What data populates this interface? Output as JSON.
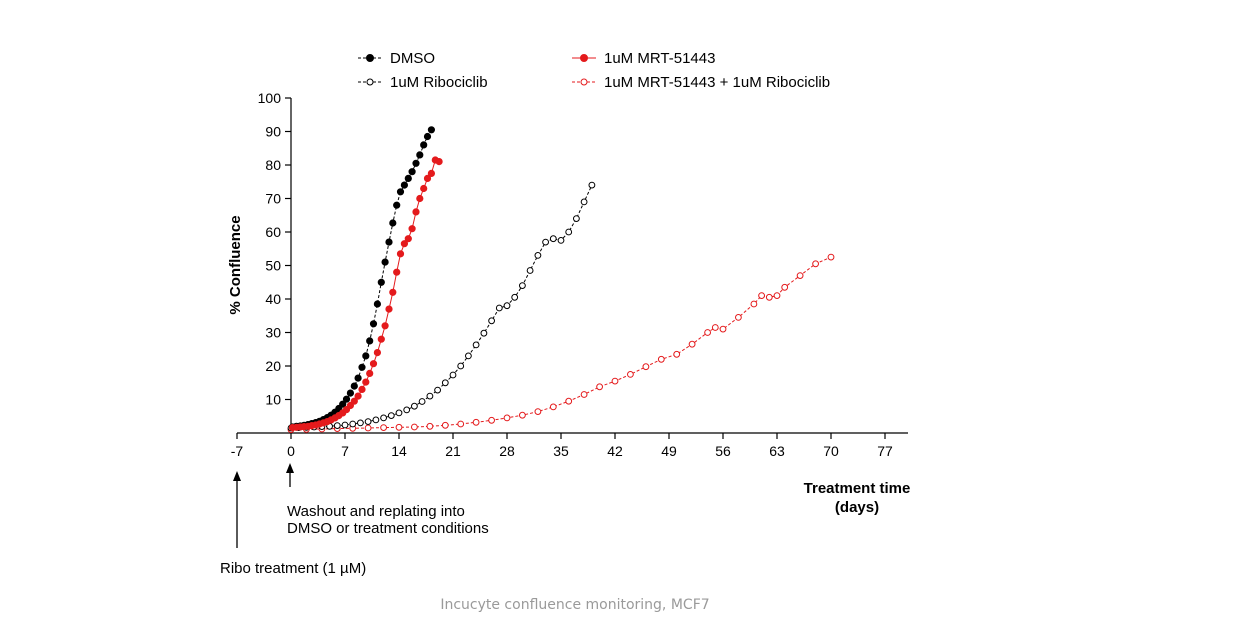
{
  "chart_data": {
    "type": "scatter",
    "title": "",
    "xlabel": [
      "Treatment time",
      "(days)"
    ],
    "ylabel": "% Confluence",
    "xlim": [
      -7,
      80
    ],
    "ylim": [
      0,
      100
    ],
    "x_ticks": [
      -7,
      0,
      7,
      14,
      21,
      28,
      35,
      42,
      49,
      56,
      63,
      70,
      77
    ],
    "y_ticks": [
      10,
      20,
      30,
      40,
      50,
      60,
      70,
      80,
      90,
      100
    ],
    "legend_position": "top",
    "series": [
      {
        "name": "DMSO",
        "color": "#000000",
        "marker": "filled",
        "line": "dashed",
        "x": [
          0.2,
          0.7,
          1.2,
          1.7,
          2.2,
          2.7,
          3.2,
          3.7,
          4.2,
          4.7,
          5.2,
          5.7,
          6.2,
          6.7,
          7.2,
          7.7,
          8.2,
          8.7,
          9.2,
          9.7,
          10.2,
          10.7,
          11.2,
          11.7,
          12.2,
          12.7,
          13.2,
          13.7,
          14.2,
          14.7,
          15.2,
          15.7,
          16.2,
          16.7,
          17.2,
          17.7,
          18.2
        ],
        "y": [
          1.8,
          2.0,
          2.1,
          2.3,
          2.5,
          2.8,
          3.1,
          3.5,
          4.0,
          4.6,
          5.3,
          6.2,
          7.3,
          8.6,
          10.1,
          11.9,
          14.0,
          16.4,
          19.6,
          23.0,
          27.5,
          32.6,
          38.5,
          45.0,
          51.0,
          57.0,
          62.7,
          68.0,
          72.0,
          74.0,
          76.0,
          78.0,
          80.5,
          83.0,
          86.0,
          88.5,
          90.5
        ]
      },
      {
        "name": "1uM MRT-51443",
        "color": "#e41a1c",
        "marker": "filled",
        "line": "solid",
        "x": [
          0.2,
          0.7,
          1.2,
          1.7,
          2.2,
          2.7,
          3.2,
          3.7,
          4.2,
          4.7,
          5.2,
          5.7,
          6.2,
          6.7,
          7.2,
          7.7,
          8.2,
          8.7,
          9.2,
          9.7,
          10.2,
          10.7,
          11.2,
          11.7,
          12.2,
          12.7,
          13.2,
          13.7,
          14.2,
          14.7,
          15.2,
          15.7,
          16.2,
          16.7,
          17.2,
          17.7,
          18.2,
          18.7,
          19.2
        ],
        "y": [
          1.6,
          1.7,
          1.8,
          1.9,
          2.0,
          2.2,
          2.4,
          2.7,
          3.0,
          3.4,
          3.9,
          4.5,
          5.2,
          6.0,
          7.0,
          8.2,
          9.5,
          11.0,
          13.0,
          15.2,
          17.8,
          20.7,
          24.0,
          28.0,
          32.0,
          37.0,
          42.0,
          48.0,
          53.5,
          56.5,
          58.0,
          61.0,
          66.0,
          70.0,
          73.0,
          76.0,
          77.5,
          81.5,
          81.0
        ]
      },
      {
        "name": "1uM Ribociclib",
        "color": "#000000",
        "marker": "open",
        "line": "dashed",
        "x": [
          0,
          1,
          2,
          3,
          4,
          5,
          6,
          7,
          8,
          9,
          10,
          11,
          12,
          13,
          14,
          15,
          16,
          17,
          18,
          19,
          20,
          21,
          22,
          23,
          24,
          25,
          26,
          27,
          28,
          29,
          30,
          31,
          32,
          33,
          34,
          35,
          36,
          37,
          38,
          39
        ],
        "y": [
          1.5,
          1.6,
          1.7,
          1.8,
          1.9,
          2.0,
          2.2,
          2.4,
          2.7,
          3.0,
          3.4,
          3.9,
          4.5,
          5.2,
          6.0,
          6.9,
          8.0,
          9.4,
          11.0,
          12.8,
          15.0,
          17.3,
          20.0,
          23.0,
          26.3,
          29.8,
          33.5,
          37.3,
          38.0,
          40.5,
          44.0,
          48.5,
          53.0,
          57.0,
          58.0,
          57.5,
          60.0,
          64.0,
          69.0,
          74.0
        ]
      },
      {
        "name": "1uM MRT-51443 + 1uM Ribociclib",
        "color": "#e41a1c",
        "marker": "open",
        "line": "dashed",
        "x": [
          0,
          2,
          4,
          6,
          8,
          10,
          12,
          14,
          16,
          18,
          20,
          22,
          24,
          26,
          28,
          30,
          32,
          34,
          36,
          38,
          40,
          42,
          44,
          46,
          48,
          50,
          52,
          54,
          55,
          56,
          58,
          60,
          61,
          62,
          63,
          64,
          66,
          68,
          70
        ],
        "y": [
          1.0,
          1.1,
          1.2,
          1.3,
          1.4,
          1.5,
          1.6,
          1.7,
          1.8,
          2.0,
          2.3,
          2.7,
          3.2,
          3.8,
          4.5,
          5.3,
          6.4,
          7.8,
          9.5,
          11.5,
          13.8,
          15.5,
          17.5,
          19.8,
          22.0,
          23.5,
          26.5,
          30.0,
          31.5,
          31.0,
          34.5,
          38.5,
          41.0,
          40.5,
          41.0,
          43.5,
          47.0,
          50.5,
          52.5
        ]
      }
    ],
    "annotations": [
      {
        "x": -7,
        "text": "Ribo treatment (1 µM)"
      },
      {
        "x": 0,
        "text": [
          "Washout and replating into",
          "DMSO or treatment conditions"
        ]
      }
    ]
  },
  "caption": "Incucyte confluence monitoring, MCF7"
}
